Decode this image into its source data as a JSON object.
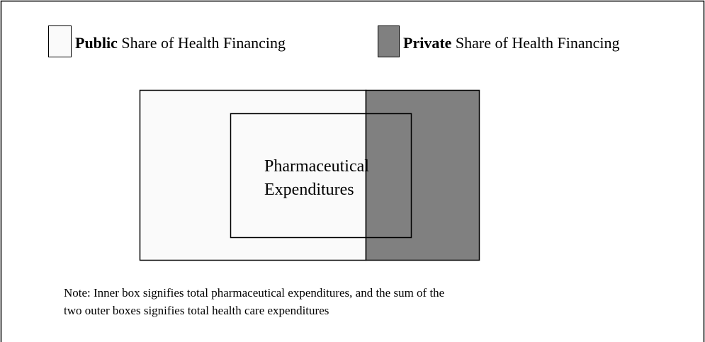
{
  "legend": [
    {
      "bold": "Public",
      "text": " Share of Health Financing"
    },
    {
      "bold": "Private",
      "text": " Share of Health Financing"
    }
  ],
  "diagram": {
    "label": [
      "Pharmaceutical",
      "Expenditures"
    ]
  },
  "note": [
    "Note: Inner box signifies total pharmaceutical expenditures, and the sum of the",
    "two outer boxes signifies total health care expenditures"
  ]
}
